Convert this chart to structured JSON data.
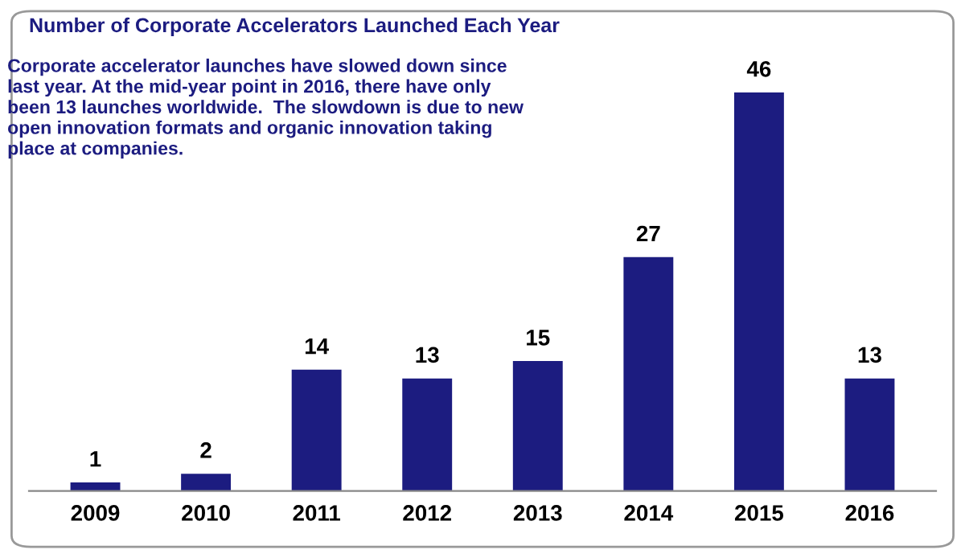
{
  "chart_data": {
    "type": "bar",
    "title": "Number of Corporate Accelerators Launched Each Year",
    "annotations": [
      "Corporate accelerator launches have slowed down since last year. At the mid-year point in 2016, there have only been 13 launches worldwide.  The slowdown is due to new open innovation formats and organic innovation taking place at companies."
    ],
    "categories": [
      "2009",
      "2010",
      "2011",
      "2012",
      "2013",
      "2014",
      "2015",
      "2016"
    ],
    "values": [
      1,
      2,
      14,
      13,
      15,
      27,
      46,
      13
    ],
    "color": "#1c1c80",
    "data_labels": true,
    "tick_labels": "x",
    "grid": false,
    "legend": false
  }
}
